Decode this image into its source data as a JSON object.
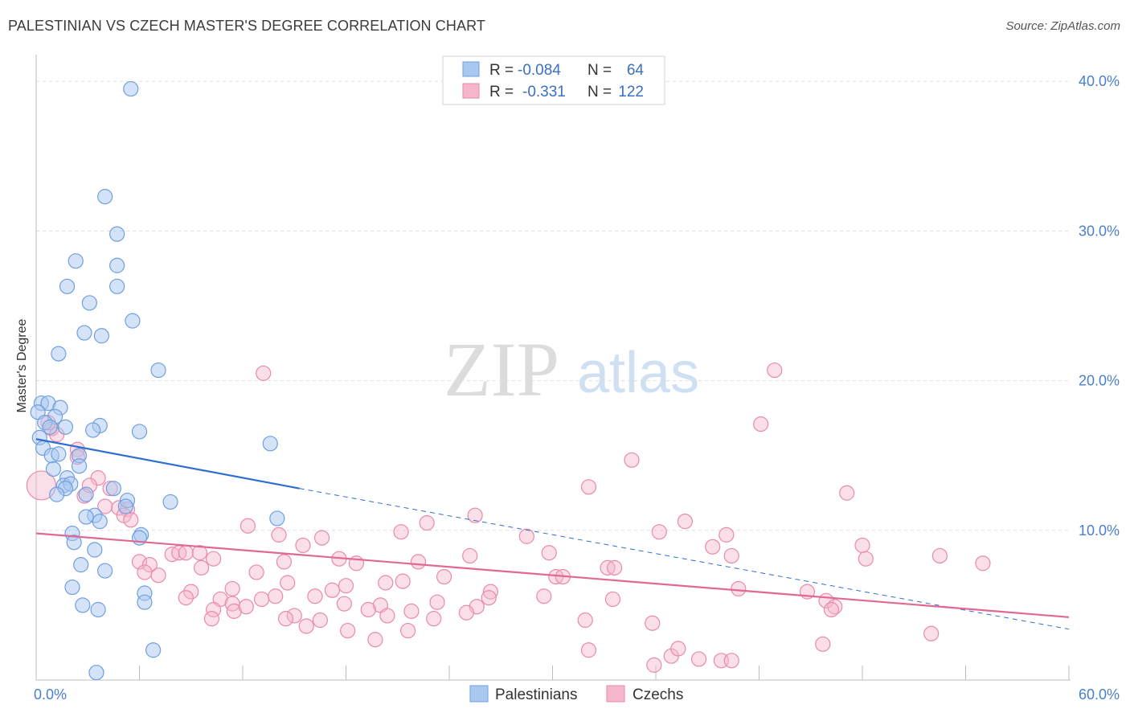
{
  "title": "PALESTINIAN VS CZECH MASTER'S DEGREE CORRELATION CHART",
  "source": "Source: ZipAtlas.com",
  "watermark": {
    "zip": "ZIP",
    "atlas": "atlas"
  },
  "colors": {
    "blue_fill": "#a9c8f0",
    "blue_stroke": "#6f9fdf",
    "blue_line": "#2f6fd0",
    "pink_fill": "#f5b6cb",
    "pink_stroke": "#e98aa9",
    "pink_line": "#e06893",
    "axis_label": "#4a7fcf",
    "grid": "#dddddd"
  },
  "legend": {
    "rows": [
      {
        "r_label": "R =",
        "r_value": "-0.084",
        "n_label": "N =",
        "n_value": "64",
        "series": "blue"
      },
      {
        "r_label": "R =",
        "r_value": "-0.331",
        "n_label": "N =",
        "n_value": "122",
        "series": "pink"
      }
    ]
  },
  "bottom_legend": [
    "Palestinians",
    "Czechs"
  ],
  "chart_data": {
    "type": "scatter",
    "title": "PALESTINIAN VS CZECH MASTER'S DEGREE CORRELATION CHART",
    "xlabel": "",
    "ylabel": "Master's Degree",
    "xlim": [
      0,
      60
    ],
    "ylim": [
      0,
      42
    ],
    "x_tick_labels": [
      "0.0%",
      "60.0%"
    ],
    "y_tick_labels": [
      "10.0%",
      "20.0%",
      "30.0%",
      "40.0%"
    ],
    "y_ticks": [
      10,
      20,
      30,
      40
    ],
    "series": [
      {
        "name": "Palestinians",
        "color": "blue",
        "R": -0.084,
        "N": 64,
        "trend": {
          "x0": 0,
          "y0": 16.1,
          "x1": 15.3,
          "y1": 12.8,
          "dash_to_x": 60,
          "dash_to_y": 3.4
        },
        "points": [
          [
            5.5,
            39.5
          ],
          [
            4.0,
            32.3
          ],
          [
            4.7,
            29.8
          ],
          [
            2.3,
            28.0
          ],
          [
            4.7,
            27.7
          ],
          [
            1.8,
            26.3
          ],
          [
            4.7,
            26.3
          ],
          [
            3.1,
            25.2
          ],
          [
            5.6,
            24.0
          ],
          [
            2.8,
            23.2
          ],
          [
            3.8,
            23.0
          ],
          [
            1.3,
            21.8
          ],
          [
            7.1,
            20.7
          ],
          [
            0.3,
            18.5
          ],
          [
            0.7,
            18.5
          ],
          [
            1.4,
            18.2
          ],
          [
            0.1,
            17.9
          ],
          [
            1.1,
            17.6
          ],
          [
            0.5,
            17.2
          ],
          [
            0.8,
            16.9
          ],
          [
            1.7,
            16.9
          ],
          [
            3.7,
            17.0
          ],
          [
            3.3,
            16.7
          ],
          [
            6.0,
            16.6
          ],
          [
            0.2,
            16.2
          ],
          [
            13.6,
            15.8
          ],
          [
            0.4,
            15.5
          ],
          [
            0.9,
            15.0
          ],
          [
            1.3,
            15.1
          ],
          [
            2.5,
            15.0
          ],
          [
            1.0,
            14.1
          ],
          [
            2.5,
            14.3
          ],
          [
            1.8,
            13.5
          ],
          [
            1.6,
            13.0
          ],
          [
            2.0,
            13.1
          ],
          [
            1.7,
            12.8
          ],
          [
            4.5,
            12.8
          ],
          [
            1.2,
            12.4
          ],
          [
            2.9,
            12.4
          ],
          [
            5.3,
            12.0
          ],
          [
            7.8,
            11.9
          ],
          [
            5.2,
            11.6
          ],
          [
            3.4,
            11.0
          ],
          [
            2.9,
            10.9
          ],
          [
            3.7,
            10.6
          ],
          [
            14.0,
            10.8
          ],
          [
            2.1,
            9.8
          ],
          [
            6.1,
            9.7
          ],
          [
            2.2,
            9.2
          ],
          [
            6.0,
            9.5
          ],
          [
            3.4,
            8.7
          ],
          [
            2.6,
            7.7
          ],
          [
            4.0,
            7.3
          ],
          [
            2.1,
            6.2
          ],
          [
            6.3,
            5.8
          ],
          [
            6.3,
            5.2
          ],
          [
            2.7,
            5.0
          ],
          [
            3.6,
            4.7
          ],
          [
            6.8,
            2.0
          ],
          [
            3.5,
            0.5
          ]
        ]
      },
      {
        "name": "Czechs",
        "color": "pink",
        "R": -0.331,
        "N": 122,
        "trend": {
          "x0": 0,
          "y0": 9.8,
          "x1": 60,
          "y1": 4.2
        },
        "points": [
          [
            0.3,
            13.0
          ],
          [
            0.9,
            16.8
          ],
          [
            0.7,
            17.2
          ],
          [
            1.2,
            16.4
          ],
          [
            2.4,
            15.4
          ],
          [
            2.4,
            14.9
          ],
          [
            3.6,
            13.5
          ],
          [
            3.1,
            13.0
          ],
          [
            4.3,
            12.8
          ],
          [
            2.8,
            12.3
          ],
          [
            4.0,
            11.6
          ],
          [
            4.8,
            11.5
          ],
          [
            5.3,
            11.4
          ],
          [
            5.1,
            11.0
          ],
          [
            5.5,
            10.7
          ],
          [
            13.2,
            20.5
          ],
          [
            42.9,
            20.7
          ],
          [
            42.1,
            17.1
          ],
          [
            34.6,
            14.7
          ],
          [
            32.1,
            12.9
          ],
          [
            47.1,
            12.5
          ],
          [
            25.5,
            11.0
          ],
          [
            22.7,
            10.5
          ],
          [
            37.7,
            10.6
          ],
          [
            12.3,
            10.3
          ],
          [
            14.1,
            9.7
          ],
          [
            21.2,
            9.9
          ],
          [
            28.5,
            9.6
          ],
          [
            36.2,
            9.9
          ],
          [
            40.1,
            9.7
          ],
          [
            16.6,
            9.5
          ],
          [
            15.5,
            9.0
          ],
          [
            39.3,
            8.9
          ],
          [
            48.0,
            9.0
          ],
          [
            6.0,
            7.9
          ],
          [
            6.6,
            7.7
          ],
          [
            7.9,
            8.4
          ],
          [
            8.3,
            8.5
          ],
          [
            8.7,
            8.5
          ],
          [
            9.5,
            8.5
          ],
          [
            10.3,
            8.1
          ],
          [
            14.4,
            7.9
          ],
          [
            17.6,
            8.1
          ],
          [
            18.6,
            7.8
          ],
          [
            22.2,
            7.9
          ],
          [
            25.2,
            8.3
          ],
          [
            29.8,
            8.5
          ],
          [
            33.2,
            7.5
          ],
          [
            40.4,
            8.3
          ],
          [
            48.2,
            8.1
          ],
          [
            52.5,
            8.3
          ],
          [
            55.0,
            7.8
          ],
          [
            6.3,
            7.2
          ],
          [
            7.1,
            7.0
          ],
          [
            9.6,
            7.5
          ],
          [
            12.8,
            7.2
          ],
          [
            23.7,
            6.9
          ],
          [
            30.2,
            6.9
          ],
          [
            30.6,
            6.9
          ],
          [
            33.6,
            7.5
          ],
          [
            14.6,
            6.5
          ],
          [
            18.0,
            6.3
          ],
          [
            20.3,
            6.5
          ],
          [
            21.3,
            6.6
          ],
          [
            11.4,
            6.1
          ],
          [
            17.2,
            6.0
          ],
          [
            26.4,
            5.9
          ],
          [
            29.5,
            5.6
          ],
          [
            40.8,
            6.1
          ],
          [
            44.8,
            5.9
          ],
          [
            9.0,
            5.9
          ],
          [
            8.7,
            5.5
          ],
          [
            10.7,
            5.4
          ],
          [
            11.4,
            5.1
          ],
          [
            13.1,
            5.4
          ],
          [
            13.9,
            5.6
          ],
          [
            16.2,
            5.6
          ],
          [
            17.9,
            5.1
          ],
          [
            20.0,
            5.0
          ],
          [
            23.3,
            5.2
          ],
          [
            25.6,
            4.9
          ],
          [
            26.3,
            5.5
          ],
          [
            33.5,
            5.4
          ],
          [
            45.9,
            5.3
          ],
          [
            46.4,
            4.9
          ],
          [
            46.2,
            4.7
          ],
          [
            10.3,
            4.7
          ],
          [
            11.5,
            4.6
          ],
          [
            12.2,
            4.9
          ],
          [
            15.0,
            4.3
          ],
          [
            14.5,
            4.1
          ],
          [
            16.5,
            4.0
          ],
          [
            19.3,
            4.7
          ],
          [
            20.4,
            4.3
          ],
          [
            21.8,
            4.6
          ],
          [
            23.1,
            4.1
          ],
          [
            25.0,
            4.5
          ],
          [
            31.9,
            4.0
          ],
          [
            35.8,
            3.8
          ],
          [
            10.2,
            4.1
          ],
          [
            15.7,
            3.6
          ],
          [
            18.1,
            3.3
          ],
          [
            21.6,
            3.3
          ],
          [
            52.0,
            3.1
          ],
          [
            19.7,
            2.7
          ],
          [
            45.7,
            2.4
          ],
          [
            32.1,
            2.0
          ],
          [
            35.9,
            1.0
          ],
          [
            36.9,
            1.6
          ],
          [
            38.5,
            1.4
          ],
          [
            39.8,
            1.3
          ],
          [
            40.4,
            1.3
          ],
          [
            37.3,
            2.1
          ]
        ]
      }
    ]
  }
}
